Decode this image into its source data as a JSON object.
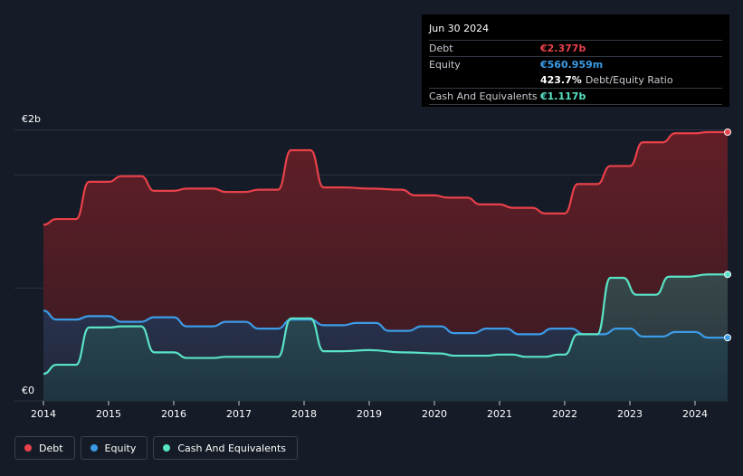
{
  "tooltip": {
    "date": "Jun 30 2024",
    "debt_label": "Debt",
    "debt_value": "€2.377b",
    "equity_label": "Equity",
    "equity_value": "€560.959m",
    "ratio_value": "423.7%",
    "ratio_label": "Debt/Equity Ratio",
    "cash_label": "Cash And Equivalents",
    "cash_value": "€1.117b"
  },
  "legend": {
    "debt": "Debt",
    "equity": "Equity",
    "cash": "Cash And Equivalents"
  },
  "colors": {
    "debt": "#e8414a",
    "equity": "#3c9be6",
    "cash": "#59e3c6",
    "background": "#151b27"
  },
  "chart_data": {
    "type": "area",
    "y_top_label": "€2b",
    "y_bottom_label": "€0",
    "ylim": [
      0,
      2.4
    ],
    "xlim": [
      2014.0,
      2024.5
    ],
    "x_ticks": [
      {
        "value": 2014,
        "label": "2014"
      },
      {
        "value": 2015,
        "label": "2015"
      },
      {
        "value": 2016,
        "label": "2016"
      },
      {
        "value": 2017,
        "label": "2017"
      },
      {
        "value": 2018,
        "label": "2018"
      },
      {
        "value": 2019,
        "label": "2019"
      },
      {
        "value": 2020,
        "label": "2020"
      },
      {
        "value": 2021,
        "label": "2021"
      },
      {
        "value": 2022,
        "label": "2022"
      },
      {
        "value": 2023,
        "label": "2023"
      },
      {
        "value": 2024,
        "label": "2024"
      }
    ],
    "legend_position": "bottom-left",
    "series": [
      {
        "name": "Debt",
        "key": "debt",
        "points": [
          [
            2014.0,
            1.56
          ],
          [
            2014.2,
            1.61
          ],
          [
            2014.5,
            1.61
          ],
          [
            2014.7,
            1.94
          ],
          [
            2015.0,
            1.94
          ],
          [
            2015.2,
            1.99
          ],
          [
            2015.5,
            1.99
          ],
          [
            2015.7,
            1.86
          ],
          [
            2016.0,
            1.86
          ],
          [
            2016.2,
            1.88
          ],
          [
            2016.6,
            1.88
          ],
          [
            2016.8,
            1.85
          ],
          [
            2017.1,
            1.85
          ],
          [
            2017.3,
            1.87
          ],
          [
            2017.6,
            1.87
          ],
          [
            2017.8,
            2.22
          ],
          [
            2018.1,
            2.22
          ],
          [
            2018.3,
            1.89
          ],
          [
            2018.6,
            1.89
          ],
          [
            2019.0,
            1.88
          ],
          [
            2019.5,
            1.87
          ],
          [
            2019.7,
            1.82
          ],
          [
            2020.0,
            1.82
          ],
          [
            2020.2,
            1.8
          ],
          [
            2020.5,
            1.8
          ],
          [
            2020.7,
            1.74
          ],
          [
            2021.0,
            1.74
          ],
          [
            2021.2,
            1.71
          ],
          [
            2021.5,
            1.71
          ],
          [
            2021.7,
            1.66
          ],
          [
            2022.0,
            1.66
          ],
          [
            2022.2,
            1.92
          ],
          [
            2022.5,
            1.92
          ],
          [
            2022.7,
            2.08
          ],
          [
            2023.0,
            2.08
          ],
          [
            2023.2,
            2.29
          ],
          [
            2023.5,
            2.29
          ],
          [
            2023.7,
            2.37
          ],
          [
            2024.0,
            2.37
          ],
          [
            2024.2,
            2.38
          ],
          [
            2024.5,
            2.38
          ]
        ]
      },
      {
        "name": "Equity",
        "key": "equity",
        "points": [
          [
            2014.0,
            0.8
          ],
          [
            2014.2,
            0.72
          ],
          [
            2014.5,
            0.72
          ],
          [
            2014.7,
            0.75
          ],
          [
            2015.0,
            0.75
          ],
          [
            2015.2,
            0.7
          ],
          [
            2015.5,
            0.7
          ],
          [
            2015.7,
            0.74
          ],
          [
            2016.0,
            0.74
          ],
          [
            2016.2,
            0.66
          ],
          [
            2016.6,
            0.66
          ],
          [
            2016.8,
            0.7
          ],
          [
            2017.1,
            0.7
          ],
          [
            2017.3,
            0.64
          ],
          [
            2017.6,
            0.64
          ],
          [
            2017.8,
            0.72
          ],
          [
            2018.1,
            0.72
          ],
          [
            2018.3,
            0.67
          ],
          [
            2018.6,
            0.67
          ],
          [
            2018.8,
            0.69
          ],
          [
            2019.1,
            0.69
          ],
          [
            2019.3,
            0.62
          ],
          [
            2019.6,
            0.62
          ],
          [
            2019.8,
            0.66
          ],
          [
            2020.1,
            0.66
          ],
          [
            2020.3,
            0.6
          ],
          [
            2020.6,
            0.6
          ],
          [
            2020.8,
            0.64
          ],
          [
            2021.1,
            0.64
          ],
          [
            2021.3,
            0.59
          ],
          [
            2021.6,
            0.59
          ],
          [
            2021.8,
            0.64
          ],
          [
            2022.1,
            0.64
          ],
          [
            2022.3,
            0.59
          ],
          [
            2022.6,
            0.59
          ],
          [
            2022.8,
            0.64
          ],
          [
            2023.0,
            0.64
          ],
          [
            2023.2,
            0.57
          ],
          [
            2023.5,
            0.57
          ],
          [
            2023.7,
            0.61
          ],
          [
            2024.0,
            0.61
          ],
          [
            2024.2,
            0.56
          ],
          [
            2024.5,
            0.56
          ]
        ]
      },
      {
        "name": "Cash And Equivalents",
        "key": "cash",
        "points": [
          [
            2014.0,
            0.24
          ],
          [
            2014.2,
            0.32
          ],
          [
            2014.5,
            0.32
          ],
          [
            2014.7,
            0.65
          ],
          [
            2015.0,
            0.65
          ],
          [
            2015.2,
            0.66
          ],
          [
            2015.5,
            0.66
          ],
          [
            2015.7,
            0.43
          ],
          [
            2016.0,
            0.43
          ],
          [
            2016.2,
            0.38
          ],
          [
            2016.6,
            0.38
          ],
          [
            2016.8,
            0.39
          ],
          [
            2017.6,
            0.39
          ],
          [
            2017.8,
            0.73
          ],
          [
            2018.1,
            0.73
          ],
          [
            2018.3,
            0.44
          ],
          [
            2018.6,
            0.44
          ],
          [
            2019.0,
            0.45
          ],
          [
            2019.5,
            0.43
          ],
          [
            2020.1,
            0.42
          ],
          [
            2020.3,
            0.4
          ],
          [
            2020.8,
            0.4
          ],
          [
            2021.0,
            0.41
          ],
          [
            2021.2,
            0.41
          ],
          [
            2021.4,
            0.39
          ],
          [
            2021.7,
            0.39
          ],
          [
            2021.9,
            0.41
          ],
          [
            2022.0,
            0.41
          ],
          [
            2022.2,
            0.59
          ],
          [
            2022.5,
            0.59
          ],
          [
            2022.7,
            1.09
          ],
          [
            2022.9,
            1.09
          ],
          [
            2023.1,
            0.94
          ],
          [
            2023.4,
            0.94
          ],
          [
            2023.6,
            1.1
          ],
          [
            2023.9,
            1.1
          ],
          [
            2024.2,
            1.12
          ],
          [
            2024.5,
            1.12
          ]
        ]
      }
    ]
  }
}
